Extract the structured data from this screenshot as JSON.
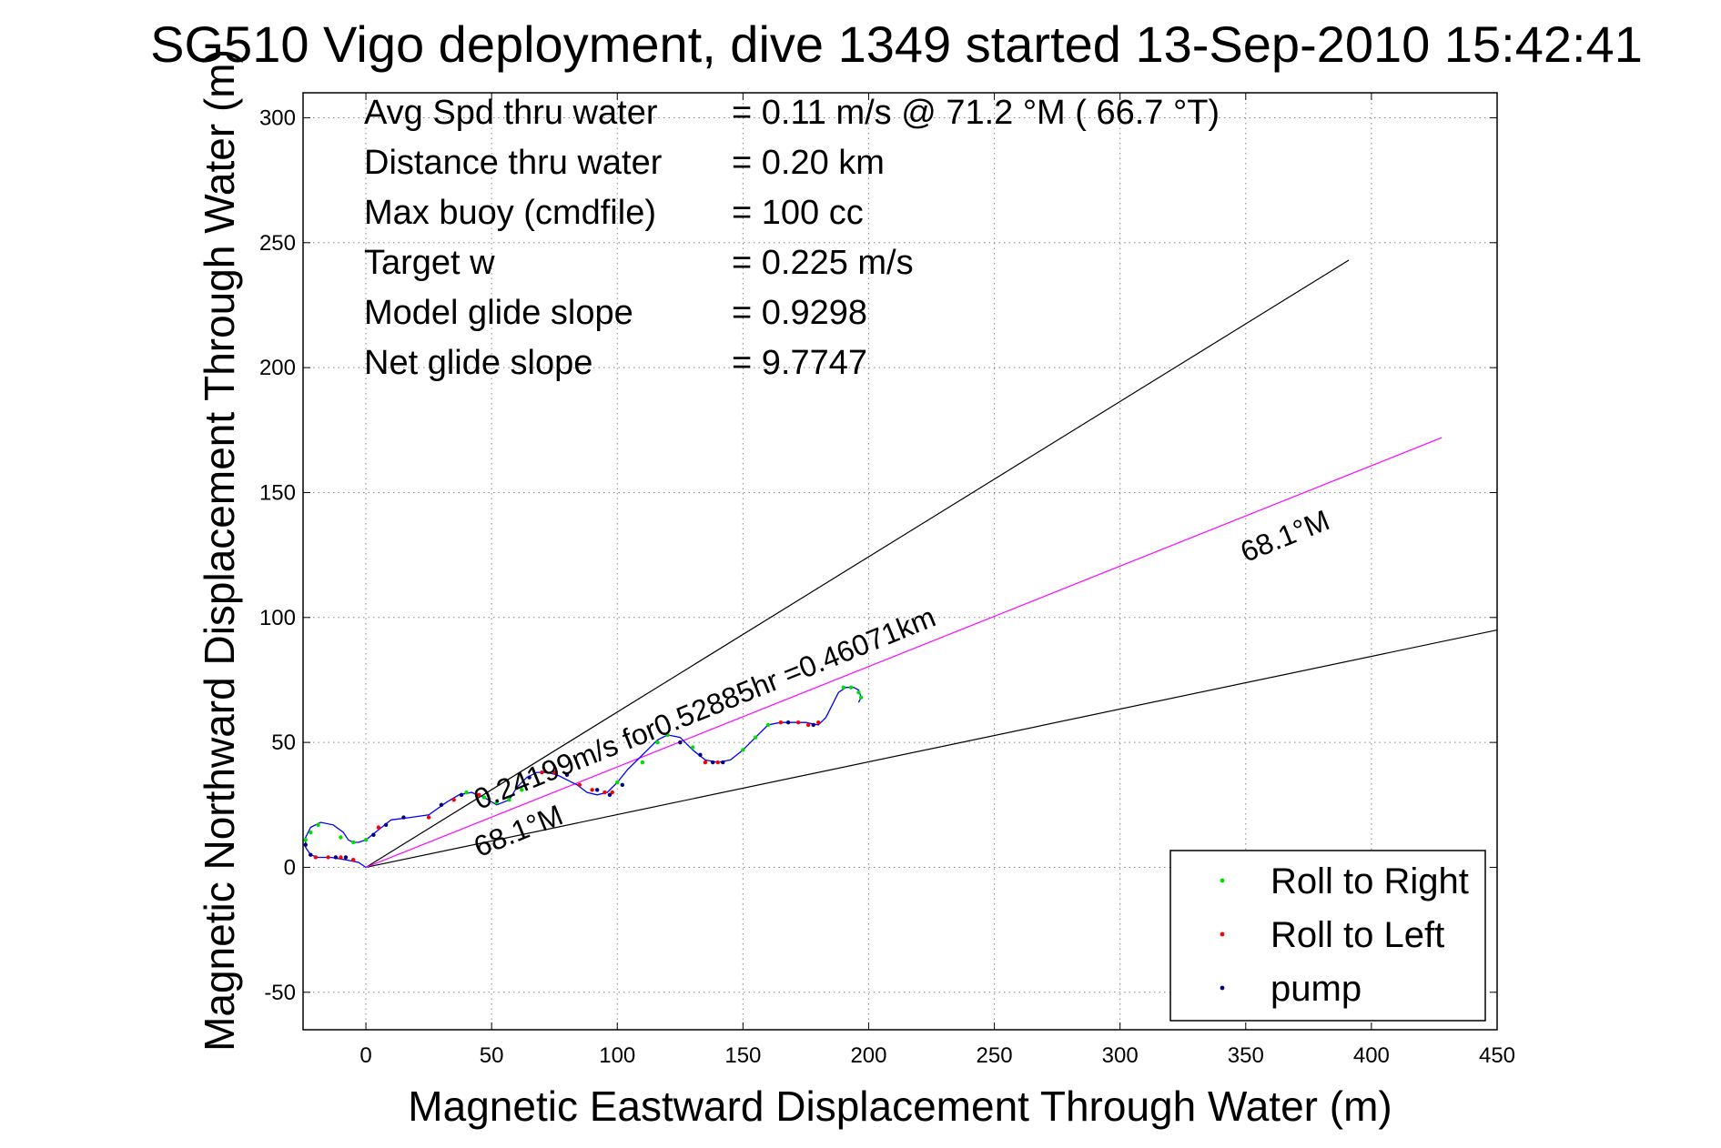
{
  "chart_data": {
    "type": "line",
    "title": "SG510 Vigo deployment, dive 1349 started 13-Sep-2010 15:42:41",
    "xlabel": "Magnetic Eastward Displacement Through Water (m)",
    "ylabel": "Magnetic Northward Displacement Through Water (m)",
    "xlim": [
      -25,
      450
    ],
    "ylim": [
      -65,
      310
    ],
    "xticks": [
      0,
      50,
      100,
      150,
      200,
      250,
      300,
      350,
      400,
      450
    ],
    "yticks": [
      -50,
      0,
      50,
      100,
      150,
      200,
      250,
      300
    ],
    "grid": true,
    "legend_position": "bottom-right",
    "info_lines": [
      {
        "label": "Avg Spd thru water",
        "value": "=  0.11 m/s @  71.2 °M ( 66.7 °T)"
      },
      {
        "label": "Distance thru water",
        "value": "=  0.20 km"
      },
      {
        "label": "Max buoy (cmdfile)",
        "value": "= 100 cc"
      },
      {
        "label": "Target w",
        "value": "= 0.225 m/s"
      },
      {
        "label": "Model glide slope",
        "value": "= 0.9298"
      },
      {
        "label": "Net glide slope",
        "value": "= 9.7747"
      }
    ],
    "lines": [
      {
        "kind": "bound-upper",
        "color": "#000000",
        "x": [
          0,
          391
        ],
        "y": [
          0,
          243
        ]
      },
      {
        "kind": "bound-lower",
        "color": "#000000",
        "x": [
          0,
          450
        ],
        "y": [
          0,
          95
        ]
      },
      {
        "kind": "course",
        "color": "#ff00ff",
        "x": [
          0,
          428
        ],
        "y": [
          0,
          172
        ]
      }
    ],
    "track": {
      "color": "#0000ff",
      "x": [
        0,
        -3,
        -8,
        -14,
        -19,
        -22,
        -24,
        -24,
        -22,
        -18,
        -13,
        -9,
        -7,
        -5,
        -3,
        0,
        5,
        10,
        18,
        25,
        32,
        37,
        42,
        47,
        52,
        57,
        60,
        64,
        68,
        72,
        76,
        80,
        84,
        88,
        92,
        96,
        100,
        104,
        108,
        112,
        116,
        120,
        125,
        130,
        135,
        140,
        145,
        150,
        155,
        160,
        165,
        170,
        175,
        180,
        183,
        186,
        188,
        191,
        194,
        196,
        197,
        196
      ],
      "y": [
        0,
        2,
        3,
        4,
        4,
        5,
        8,
        12,
        16,
        18,
        17,
        14,
        11,
        10,
        10,
        11,
        15,
        19,
        20,
        21,
        26,
        29,
        30,
        28,
        25,
        27,
        32,
        36,
        38,
        38,
        37,
        35,
        33,
        30,
        29,
        30,
        34,
        39,
        43,
        47,
        51,
        53,
        52,
        47,
        43,
        42,
        43,
        47,
        52,
        57,
        58,
        58,
        58,
        57,
        60,
        66,
        70,
        72,
        72,
        71,
        68,
        66
      ]
    },
    "series": [
      {
        "name": "Roll to Right",
        "color": "#00dd00",
        "x": [
          -24,
          -22,
          -19,
          -10,
          -5,
          0,
          40,
          47,
          52,
          57,
          62,
          100,
          110,
          116,
          120,
          130,
          150,
          155,
          160,
          190,
          193,
          196,
          197
        ],
        "y": [
          11,
          14,
          17,
          12,
          10,
          11,
          30,
          28,
          26,
          27,
          31,
          34,
          42,
          50,
          53,
          48,
          47,
          52,
          57,
          72,
          72,
          70,
          68
        ]
      },
      {
        "name": "Roll to Left",
        "color": "#ff0000",
        "x": [
          -20,
          -15,
          -10,
          -5,
          5,
          25,
          35,
          45,
          70,
          75,
          85,
          90,
          95,
          98,
          135,
          140,
          165,
          172,
          176,
          180
        ],
        "y": [
          4,
          4,
          4,
          3,
          16,
          20,
          27,
          29,
          38,
          38,
          33,
          31,
          30,
          30,
          42,
          42,
          58,
          58,
          57,
          58
        ]
      },
      {
        "name": "pump",
        "color": "#000080",
        "x": [
          -24,
          -22,
          -12,
          -8,
          3,
          8,
          15,
          30,
          38,
          65,
          80,
          92,
          97,
          102,
          125,
          133,
          138,
          142,
          168,
          178
        ],
        "y": [
          9,
          5,
          4,
          4,
          13,
          17,
          20,
          25,
          29,
          36,
          37,
          31,
          29,
          33,
          50,
          45,
          42,
          42,
          58,
          57
        ]
      }
    ],
    "annotations": [
      {
        "text": "68.1°M",
        "x": 350,
        "y": 122,
        "rotation": -22
      },
      {
        "text": "0.24199m/s for0.52885hr =0.46071km",
        "x": 45,
        "y": 23,
        "rotation": -22
      },
      {
        "text": "68.1°M",
        "x": 45,
        "y": 4,
        "rotation": -22
      }
    ]
  }
}
